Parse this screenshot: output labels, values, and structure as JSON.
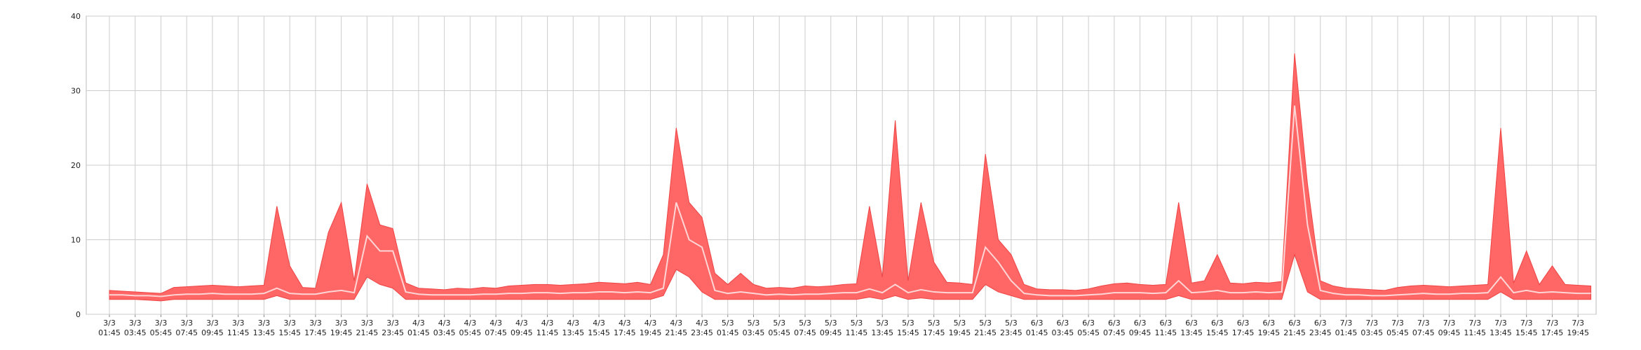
{
  "chart_data": {
    "type": "band",
    "categories": [
      "3/3 01:45",
      null,
      "3/3 03:45",
      null,
      "3/3 05:45",
      null,
      "3/3 07:45",
      null,
      "3/3 09:45",
      null,
      "3/3 11:45",
      null,
      "3/3 13:45",
      null,
      "3/3 15:45",
      null,
      "3/3 17:45",
      null,
      "3/3 19:45",
      null,
      "3/3 21:45",
      null,
      "3/3 23:45",
      null,
      "4/3 01:45",
      null,
      "4/3 03:45",
      null,
      "4/3 05:45",
      null,
      "4/3 07:45",
      null,
      "4/3 09:45",
      null,
      "4/3 11:45",
      null,
      "4/3 13:45",
      null,
      "4/3 15:45",
      null,
      "4/3 17:45",
      null,
      "4/3 19:45",
      null,
      "4/3 21:45",
      null,
      "4/3 23:45",
      null,
      "5/3 01:45",
      null,
      "5/3 03:45",
      null,
      "5/3 05:45",
      null,
      "5/3 07:45",
      null,
      "5/3 09:45",
      null,
      "5/3 11:45",
      null,
      "5/3 13:45",
      null,
      "5/3 15:45",
      null,
      "5/3 17:45",
      null,
      "5/3 19:45",
      null,
      "5/3 21:45",
      null,
      "5/3 23:45",
      null,
      "6/3 01:45",
      null,
      "6/3 03:45",
      null,
      "6/3 05:45",
      null,
      "6/3 07:45",
      null,
      "6/3 09:45",
      null,
      "6/3 11:45",
      null,
      "6/3 13:45",
      null,
      "6/3 15:45",
      null,
      "6/3 17:45",
      null,
      "6/3 19:45",
      null,
      "6/3 21:45",
      null,
      "6/3 23:45",
      null,
      "7/3 01:45",
      null,
      "7/3 03:45",
      null,
      "7/3 05:45",
      null,
      "7/3 07:45",
      null,
      "7/3 09:45",
      null,
      "7/3 11:45",
      null,
      "7/3 13:45",
      null,
      "7/3 15:45",
      null,
      "7/3 17:45",
      null,
      "7/3 19:45",
      null
    ],
    "series": [
      {
        "color": "#ff6666",
        "values": [
          2,
          2,
          2,
          1.9,
          1.8,
          2,
          2,
          2,
          2,
          2,
          2,
          2,
          2,
          2.5,
          2,
          2,
          2,
          2,
          2,
          2,
          5,
          4,
          3.5,
          2,
          2,
          2,
          2,
          2,
          2,
          2,
          2,
          2,
          2,
          2,
          2,
          2,
          2,
          2,
          2,
          2,
          2,
          2,
          2,
          2.5,
          6,
          5,
          3,
          2,
          2,
          2,
          2,
          2,
          2,
          2,
          2,
          2,
          2,
          2,
          2,
          2.3,
          2,
          2.5,
          2,
          2.2,
          2,
          2,
          2,
          2,
          4,
          3,
          2.5,
          2,
          2,
          2,
          2,
          2,
          2,
          2,
          2,
          2,
          2,
          2,
          2,
          2.5,
          2,
          2,
          2,
          2,
          2,
          2,
          2,
          2,
          8,
          3,
          2,
          2,
          2,
          2,
          2,
          2,
          2,
          2,
          2,
          2,
          2,
          2,
          2,
          2,
          3,
          2,
          2,
          2,
          2,
          2,
          2,
          2
        ]
      },
      {
        "color": "#ff6666",
        "values": [
          3.2,
          3.1,
          3,
          2.9,
          2.8,
          3.6,
          3.7,
          3.8,
          3.9,
          3.8,
          3.7,
          3.8,
          3.9,
          14.5,
          6.5,
          3.6,
          3.5,
          11,
          15,
          4.5,
          17.5,
          12,
          11.5,
          4.2,
          3.5,
          3.4,
          3.3,
          3.5,
          3.4,
          3.6,
          3.5,
          3.8,
          3.9,
          4,
          4,
          3.9,
          4,
          4.1,
          4.3,
          4.2,
          4.1,
          4.3,
          4,
          8,
          25,
          15,
          13,
          5.5,
          4,
          5.5,
          4,
          3.5,
          3.6,
          3.5,
          3.8,
          3.7,
          3.8,
          4,
          4.1,
          14.5,
          5,
          26,
          4.5,
          15,
          7,
          4.3,
          4.2,
          4,
          21.5,
          10,
          8,
          4,
          3.4,
          3.3,
          3.3,
          3.2,
          3.4,
          3.8,
          4.1,
          4.2,
          4,
          3.9,
          4,
          15,
          4.2,
          4.5,
          8,
          4.2,
          4.1,
          4.3,
          4.2,
          4.4,
          35,
          17.5,
          4.5,
          3.8,
          3.5,
          3.4,
          3.3,
          3.2,
          3.6,
          3.8,
          3.9,
          3.8,
          3.7,
          3.8,
          3.9,
          4,
          25,
          4.2,
          8.5,
          4,
          6.5,
          4,
          3.9,
          3.8
        ]
      },
      {
        "color": "#ffd6d6",
        "values": [
          2.6,
          2.6,
          2.5,
          2.5,
          2.4,
          2.6,
          2.7,
          2.7,
          2.8,
          2.7,
          2.7,
          2.7,
          2.8,
          3.5,
          2.8,
          2.7,
          2.7,
          3,
          3.2,
          2.9,
          10.5,
          8.5,
          8.5,
          3,
          2.7,
          2.6,
          2.6,
          2.6,
          2.6,
          2.7,
          2.7,
          2.8,
          2.8,
          2.9,
          2.9,
          2.8,
          2.9,
          2.9,
          3,
          3,
          2.9,
          3,
          2.9,
          3.5,
          15,
          10,
          9,
          3.2,
          2.8,
          3,
          2.8,
          2.6,
          2.7,
          2.6,
          2.7,
          2.7,
          2.8,
          2.9,
          2.9,
          3.4,
          2.9,
          4,
          2.9,
          3.3,
          3,
          2.9,
          2.9,
          2.9,
          9,
          7,
          4.5,
          2.8,
          2.6,
          2.5,
          2.5,
          2.5,
          2.6,
          2.7,
          2.9,
          2.9,
          2.9,
          2.8,
          2.9,
          4.5,
          2.9,
          3,
          3.2,
          2.9,
          2.9,
          3,
          2.9,
          3,
          28,
          12,
          3.2,
          2.8,
          2.6,
          2.6,
          2.5,
          2.5,
          2.6,
          2.7,
          2.8,
          2.7,
          2.7,
          2.8,
          2.8,
          2.9,
          5,
          2.9,
          3.2,
          2.9,
          3,
          2.9,
          2.8,
          2.8
        ]
      }
    ],
    "ylim": [
      0,
      40
    ],
    "yticks": [
      0,
      10,
      20,
      30,
      40
    ],
    "grid": true
  }
}
